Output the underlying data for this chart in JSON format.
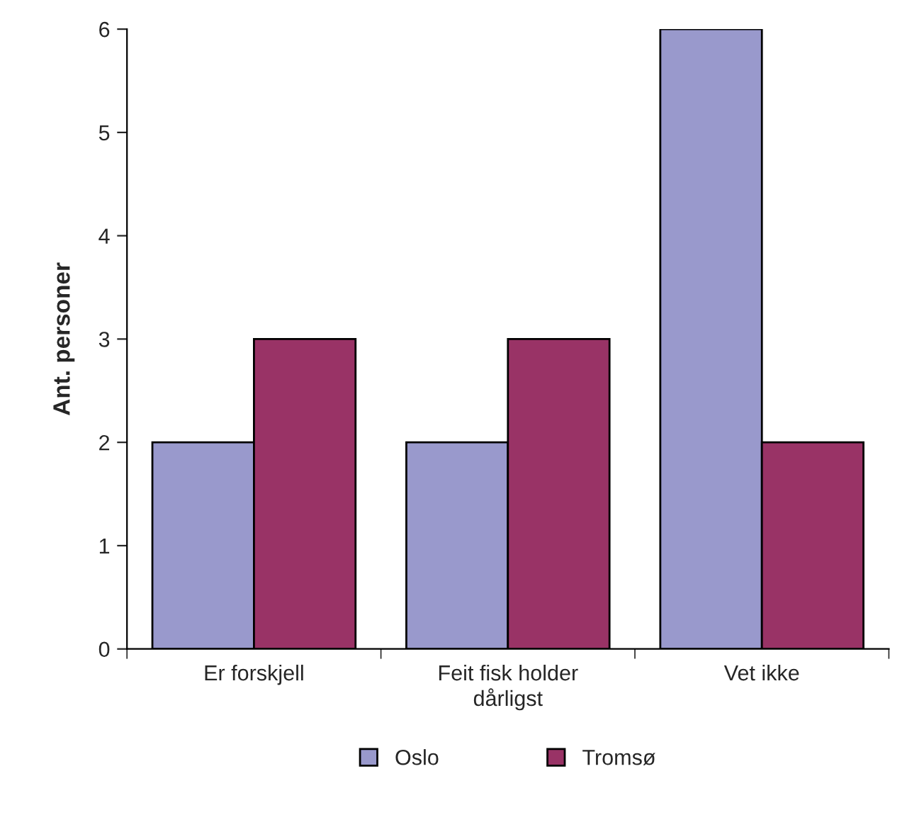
{
  "chart_data": {
    "type": "bar",
    "ylabel": "Ant. personer",
    "categories": [
      "Er forskjell",
      "Feit fisk holder\ndårligst",
      "Vet ikke"
    ],
    "series": [
      {
        "name": "Oslo",
        "color": "#9999cc",
        "values": [
          2,
          2,
          6
        ]
      },
      {
        "name": "Tromsø",
        "color": "#993366",
        "values": [
          3,
          3,
          2
        ]
      }
    ],
    "ylim": [
      0,
      6
    ],
    "yticks": [
      0,
      1,
      2,
      3,
      4,
      5,
      6
    ],
    "grid": false,
    "legend": "bottom"
  }
}
